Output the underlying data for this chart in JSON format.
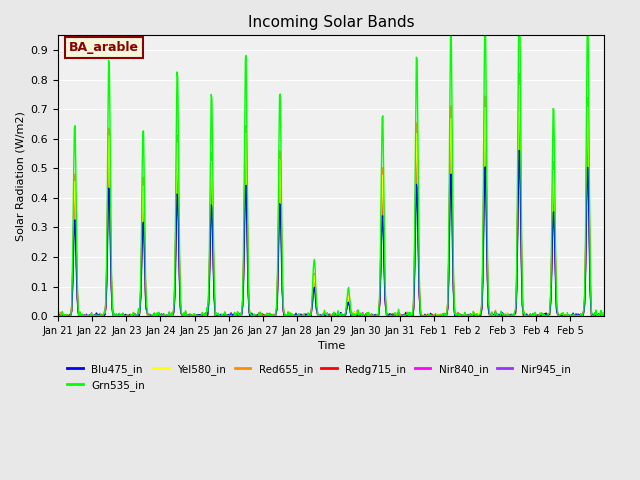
{
  "title": "Incoming Solar Bands",
  "xlabel": "Time",
  "ylabel": "Solar Radiation (W/m2)",
  "ylim": [
    0,
    0.95
  ],
  "yticks": [
    0.0,
    0.1,
    0.2,
    0.3,
    0.4,
    0.5,
    0.6,
    0.7,
    0.8,
    0.9
  ],
  "annotation_text": "BA_arable",
  "annotation_color": "#8B0000",
  "annotation_bg": "#F5F5DC",
  "series": {
    "Blu475_in": {
      "color": "#0000FF",
      "lw": 1.0
    },
    "Grn535_in": {
      "color": "#00FF00",
      "lw": 1.0
    },
    "Yel580_in": {
      "color": "#FFFF00",
      "lw": 1.0
    },
    "Red655_in": {
      "color": "#FF8C00",
      "lw": 1.0
    },
    "Redg715_in": {
      "color": "#FF0000",
      "lw": 1.0
    },
    "Nir840_in": {
      "color": "#FF00FF",
      "lw": 1.0
    },
    "Nir945_in": {
      "color": "#9B30FF",
      "lw": 1.0
    }
  },
  "xtick_labels": [
    "Jan 21",
    "Jan 22",
    "Jan 23",
    "Jan 24",
    "Jan 25",
    "Jan 26",
    "Jan 27",
    "Jan 28",
    "Jan 29",
    "Jan 30",
    "Jan 31",
    "Feb 1",
    "Feb 2",
    "Feb 3",
    "Feb 4",
    "Feb 5"
  ],
  "n_days": 16,
  "samples_per_day": 48,
  "day_peaks": [
    0.48,
    0.63,
    0.46,
    0.6,
    0.55,
    0.65,
    0.55,
    0.14,
    0.07,
    0.5,
    0.65,
    0.7,
    0.74,
    0.82,
    0.52,
    0.74
  ],
  "grn_scale": 1.35,
  "nir_scale": 0.92,
  "bg_color": "#E8E8E8",
  "plot_bg": "#F0F0F0",
  "band_scales": {
    "Blu475_in": 0.68,
    "Grn535_in": 1.35,
    "Yel580_in": 0.95,
    "Red655_in": 1.0,
    "Redg715_in": 0.88,
    "Nir840_in": 0.92,
    "Nir945_in": 0.85
  }
}
